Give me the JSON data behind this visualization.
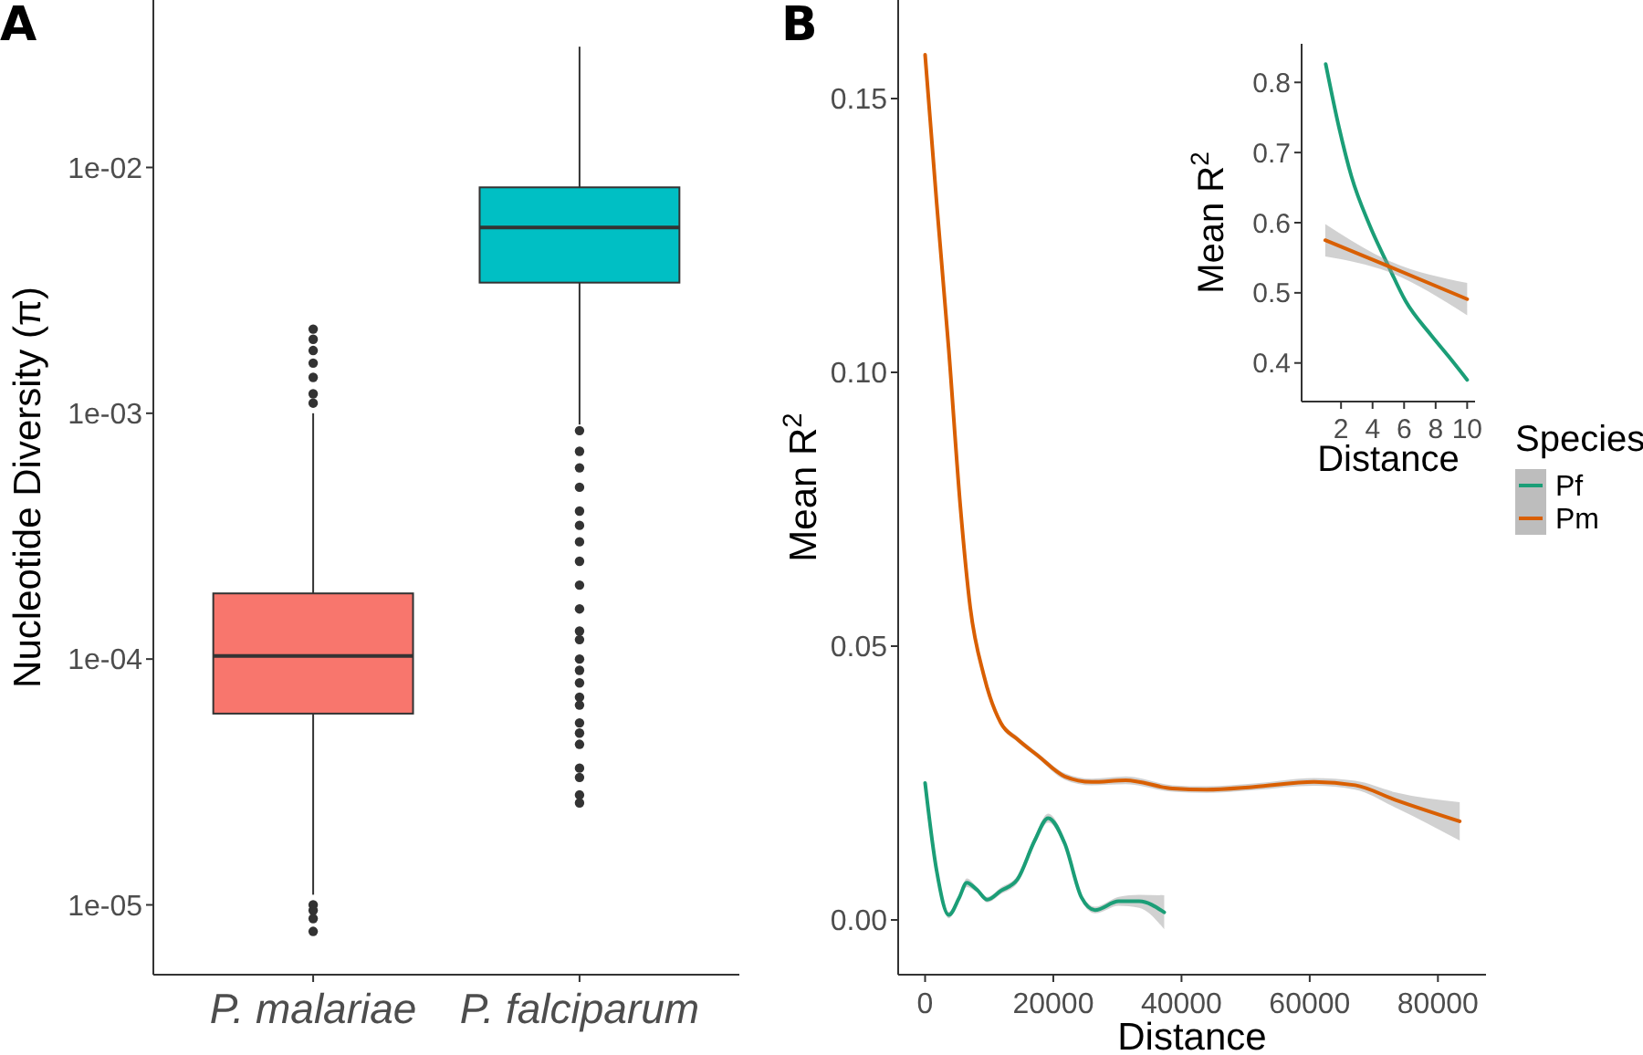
{
  "chart_data": [
    {
      "type": "box",
      "title": "A",
      "ylabel": "Nucleotide Diversity (π)",
      "categories": [
        "P. malariae",
        "P. falciparum"
      ],
      "colors": [
        "#f8766d",
        "#00bfc4"
      ],
      "log": true,
      "ylim": [
        5.2e-06,
        0.048
      ],
      "yticks": [
        {
          "value": 1e-05,
          "label": "1e-05"
        },
        {
          "value": 0.0001,
          "label": "1e-04"
        },
        {
          "value": 0.001,
          "label": "1e-03"
        },
        {
          "value": 0.01,
          "label": "1e-02"
        }
      ],
      "boxes": [
        {
          "low": 1.1e-05,
          "q1": 6e-05,
          "median": 0.000103,
          "q3": 0.000185,
          "high": 0.001,
          "outliers": [
            0.0011,
            0.0012,
            0.0014,
            0.0016,
            0.0018,
            0.002,
            0.0022,
            1e-05,
            9.5e-06,
            8.8e-06,
            7.8e-06
          ]
        },
        {
          "low": 0.0009,
          "q1": 0.0034,
          "median": 0.0057,
          "q3": 0.0083,
          "high": 0.031,
          "outliers": [
            0.00085,
            0.0007,
            0.0006,
            0.0005,
            0.0004,
            0.00035,
            0.0003,
            0.00025,
            0.0002,
            0.00016,
            0.00013,
            0.00012,
            0.0001,
            9e-05,
            8e-05,
            7e-05,
            6.5e-05,
            5.5e-05,
            5e-05,
            4.5e-05,
            3.6e-05,
            3.3e-05,
            2.8e-05,
            2.6e-05
          ]
        }
      ]
    },
    {
      "type": "line",
      "title": "B",
      "xlabel": "Distance",
      "ylabel": "Mean R$^{2}$",
      "legend_title": "Species",
      "legend": "right",
      "xlim": [
        -4200,
        87500
      ],
      "ylim": [
        -0.01,
        0.168
      ],
      "xticks": [
        0,
        20000,
        40000,
        60000,
        80000
      ],
      "yticks": [
        {
          "value": 0,
          "label": "0.00"
        },
        {
          "value": 0.05,
          "label": "0.05"
        },
        {
          "value": 0.1,
          "label": "0.10"
        },
        {
          "value": 0.15,
          "label": "0.15"
        }
      ],
      "series": [
        {
          "name": "Pf",
          "color": "#1b9e77",
          "x": [
            0,
            1800,
            3700,
            5300,
            6500,
            8100,
            9700,
            11800,
            14400,
            17100,
            19200,
            21800,
            24400,
            26500,
            30200,
            33400,
            37300
          ],
          "values": [
            0.025,
            0.009,
            0.0009,
            0.004,
            0.0068,
            0.0055,
            0.0037,
            0.0053,
            0.0074,
            0.0145,
            0.0186,
            0.0139,
            0.0041,
            0.0018,
            0.0034,
            0.0034,
            0.0014
          ],
          "lower": [
            0.0245,
            0.0085,
            0.0003,
            0.0035,
            0.006,
            0.005,
            0.0032,
            0.0047,
            0.0067,
            0.0138,
            0.0178,
            0.0132,
            0.0035,
            0.0012,
            0.0026,
            0.0022,
            -0.0017
          ],
          "upper": [
            0.0255,
            0.0095,
            0.0015,
            0.0045,
            0.0076,
            0.006,
            0.0042,
            0.0059,
            0.0081,
            0.0152,
            0.0194,
            0.0146,
            0.0047,
            0.0024,
            0.0042,
            0.0046,
            0.0045
          ]
        },
        {
          "name": "Pm",
          "color": "#d95f02",
          "x": [
            0,
            1800,
            3700,
            5500,
            7050,
            9150,
            11800,
            14400,
            17600,
            21800,
            26000,
            31300,
            38600,
            43900,
            51300,
            60700,
            67100,
            73400,
            83400
          ],
          "values": [
            0.158,
            0.131,
            0.104,
            0.0755,
            0.057,
            0.0447,
            0.036,
            0.033,
            0.03,
            0.0262,
            0.0252,
            0.0255,
            0.024,
            0.0238,
            0.0243,
            0.0252,
            0.0246,
            0.0219,
            0.018
          ],
          "lower": [
            0.1575,
            0.1305,
            0.1035,
            0.075,
            0.0565,
            0.0442,
            0.0355,
            0.0325,
            0.0295,
            0.0256,
            0.0246,
            0.0248,
            0.0234,
            0.0232,
            0.0237,
            0.0245,
            0.0238,
            0.0205,
            0.0145
          ],
          "upper": [
            0.1585,
            0.1315,
            0.1045,
            0.076,
            0.0575,
            0.0452,
            0.0365,
            0.0335,
            0.0305,
            0.0268,
            0.0258,
            0.0262,
            0.0246,
            0.0244,
            0.0249,
            0.0259,
            0.0254,
            0.0233,
            0.0215
          ]
        }
      ]
    },
    {
      "type": "line",
      "xlabel": "Distance",
      "ylabel": "Mean R$^{2}$",
      "xlim": [
        -0.5,
        10.5
      ],
      "ylim": [
        0.345,
        0.855
      ],
      "xticks": [
        2,
        4,
        6,
        8,
        10
      ],
      "yticks": [
        0.4,
        0.5,
        0.6,
        0.7,
        0.8
      ],
      "series": [
        {
          "color": "#1b9e77",
          "x": [
            1.03,
            1.88,
            2.66,
            3.8,
            4.97,
            6.1,
            7.7,
            8.8,
            10
          ],
          "values": [
            0.826,
            0.735,
            0.666,
            0.597,
            0.54,
            0.488,
            0.44,
            0.41,
            0.376
          ]
        },
        {
          "color": "#d95f02",
          "x": [
            1,
            5,
            10
          ],
          "values": [
            0.575,
            0.538,
            0.491
          ],
          "lower": [
            0.552,
            0.53,
            0.468
          ],
          "upper": [
            0.598,
            0.546,
            0.514
          ]
        }
      ]
    }
  ]
}
